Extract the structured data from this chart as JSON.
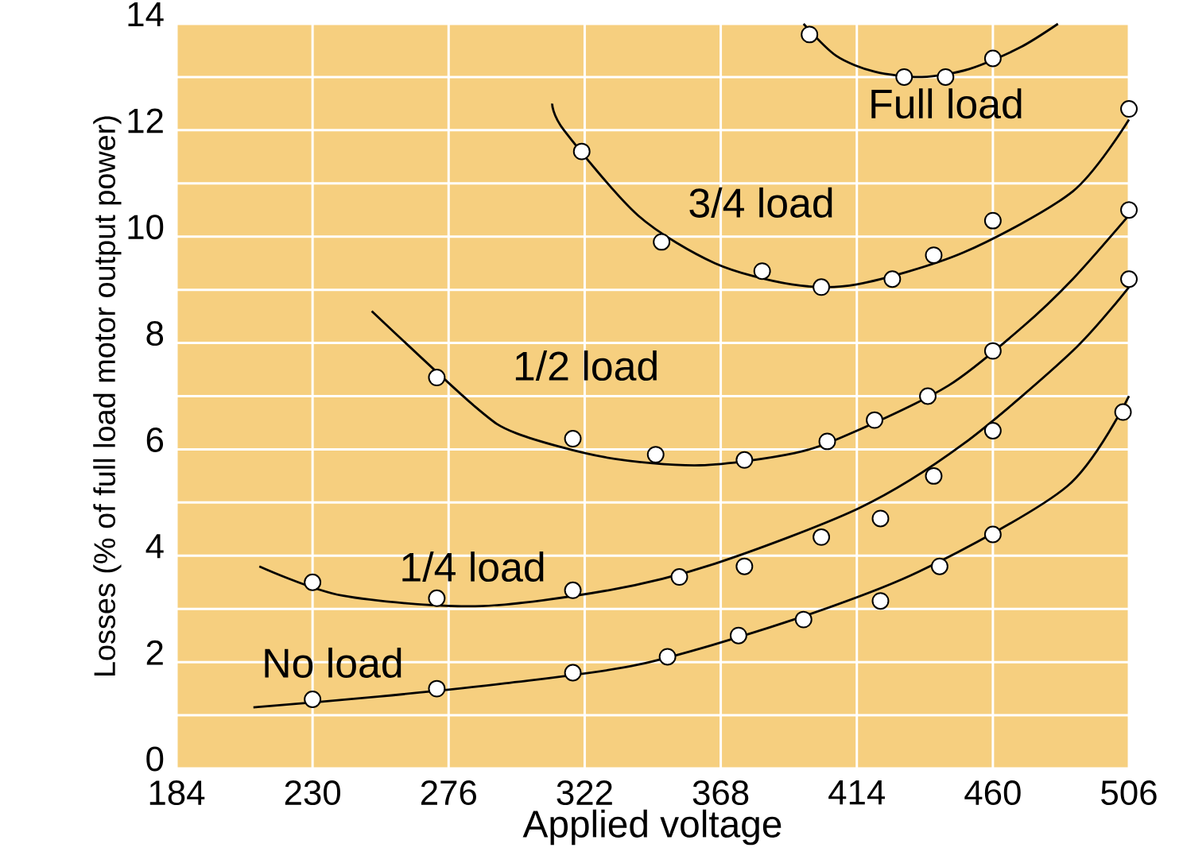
{
  "chart_data": {
    "type": "line",
    "xlabel": "Applied voltage",
    "ylabel": "Losses (% of full load motor output power)",
    "xlim": [
      184,
      506
    ],
    "ylim": [
      0,
      14
    ],
    "xticks": [
      184,
      230,
      276,
      322,
      368,
      414,
      460,
      506
    ],
    "yticks": [
      0,
      {
        "value": 1,
        "label": null
      },
      2,
      {
        "value": 3,
        "label": null
      },
      4,
      {
        "value": 5,
        "label": null
      },
      6,
      {
        "value": 7,
        "label": null
      },
      8,
      {
        "value": 9,
        "label": null
      },
      10,
      {
        "value": 11,
        "label": null
      },
      12,
      {
        "value": 13,
        "label": null
      },
      14
    ],
    "grid": true,
    "series": [
      {
        "color": "#000000",
        "marker": "none",
        "x": [
          210,
          252,
          295,
          340,
          390,
          435,
          485,
          506
        ],
        "values": [
          1.15,
          1.35,
          1.6,
          1.95,
          2.75,
          3.7,
          5.3,
          7.0
        ]
      },
      {
        "type": "scatter",
        "color": "#ffffff",
        "marker": "circle",
        "x": [
          230,
          272,
          318,
          350,
          374,
          396,
          422,
          442,
          460,
          504
        ],
        "values": [
          1.3,
          1.5,
          1.8,
          2.1,
          2.5,
          2.8,
          3.15,
          3.8,
          4.4,
          6.7
        ]
      },
      {
        "color": "#000000",
        "marker": "none",
        "x": [
          212,
          240,
          285,
          330,
          366,
          415,
          450,
          487,
          506
        ],
        "values": [
          3.8,
          3.25,
          3.05,
          3.35,
          3.85,
          4.9,
          6.1,
          7.85,
          9.05
        ]
      },
      {
        "type": "scatter",
        "color": "#ffffff",
        "marker": "circle",
        "x": [
          230,
          272,
          318,
          354,
          376,
          402,
          422,
          440,
          460,
          506
        ],
        "values": [
          3.5,
          3.2,
          3.35,
          3.6,
          3.8,
          4.35,
          4.7,
          5.5,
          6.35,
          9.2
        ]
      },
      {
        "color": "#000000",
        "marker": "none",
        "x": [
          250,
          285,
          299,
          329,
          361,
          393,
          412,
          445,
          470,
          487,
          506
        ],
        "values": [
          8.6,
          6.8,
          6.3,
          5.85,
          5.7,
          5.93,
          6.3,
          7.2,
          8.3,
          9.2,
          10.4
        ]
      },
      {
        "type": "scatter",
        "color": "#ffffff",
        "marker": "circle",
        "x": [
          272,
          318,
          346,
          376,
          404,
          420,
          438,
          460,
          506
        ],
        "values": [
          7.35,
          6.2,
          5.9,
          5.8,
          6.15,
          6.55,
          7.0,
          7.85,
          10.5
        ]
      },
      {
        "color": "#000000",
        "marker": "none",
        "x": [
          311,
          315,
          340,
          366,
          392,
          414,
          450,
          487,
          506
        ],
        "values": [
          12.5,
          12.0,
          10.4,
          9.5,
          9.1,
          9.1,
          9.7,
          10.85,
          12.2
        ]
      },
      {
        "type": "scatter",
        "color": "#ffffff",
        "marker": "circle",
        "x": [
          321,
          348,
          382,
          402,
          426,
          440,
          460,
          506
        ],
        "values": [
          11.6,
          9.9,
          9.35,
          9.05,
          9.2,
          9.65,
          10.3,
          12.4
        ]
      },
      {
        "color": "#000000",
        "marker": "none",
        "x": [
          396,
          407,
          420,
          436,
          452,
          469,
          482
        ],
        "values": [
          14.0,
          13.4,
          13.1,
          13.0,
          13.15,
          13.55,
          14.0
        ]
      },
      {
        "type": "scatter",
        "color": "#ffffff",
        "marker": "circle",
        "x": [
          398,
          430,
          444,
          460
        ],
        "values": [
          13.8,
          13.0,
          13.0,
          13.35
        ]
      }
    ],
    "annotations": [
      "Full load",
      "3/4 load",
      "1/2 load",
      "1/4 load",
      "No load"
    ]
  }
}
